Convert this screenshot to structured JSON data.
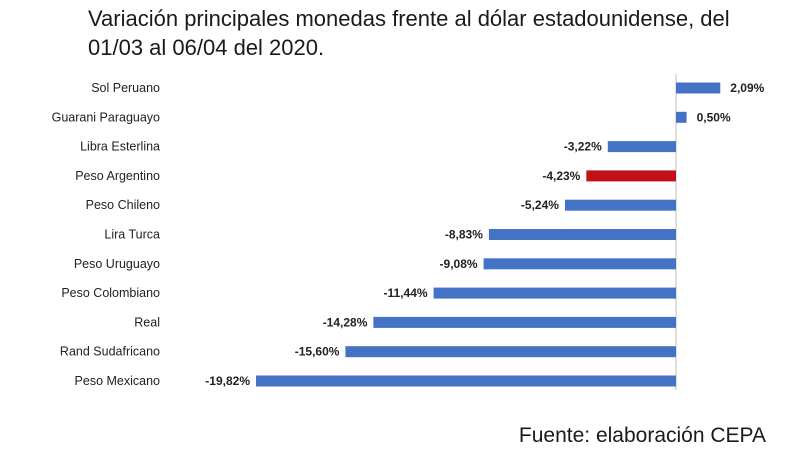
{
  "chart_data": {
    "type": "bar",
    "orientation": "horizontal",
    "title": "Variación principales monedas frente al dólar estadounidense, del 01/03 al 06/04 del 2020.",
    "source": "Fuente: elaboración CEPA",
    "xlabel": "",
    "ylabel": "",
    "xlim": [
      -20.5,
      5
    ],
    "categories": [
      "Sol Peruano",
      "Guarani Paraguayo",
      "Libra Esterlina",
      "Peso Argentino",
      "Peso Chileno",
      "Lira Turca",
      "Peso Uruguayo",
      "Peso Colombiano",
      "Real",
      "Rand Sudafricano",
      "Peso Mexicano"
    ],
    "values": [
      2.09,
      0.5,
      -3.22,
      -4.23,
      -5.24,
      -8.83,
      -9.08,
      -11.44,
      -14.28,
      -15.6,
      -19.82
    ],
    "value_labels": [
      "2,09%",
      "0,50%",
      "-3,22%",
      "-4,23%",
      "-5,24%",
      "-8,83%",
      "-9,08%",
      "-11,44%",
      "-14,28%",
      "-15,60%",
      "-19,82%"
    ],
    "colors": {
      "default": "#4472c4",
      "highlight": "#c0101a",
      "axis": "#bfbfbf"
    },
    "highlight_category": "Peso Argentino",
    "grid": false,
    "legend": "none"
  }
}
